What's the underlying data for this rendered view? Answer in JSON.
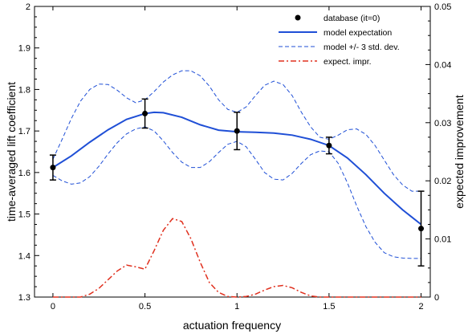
{
  "chart_data": {
    "type": "line",
    "xlabel": "actuation frequency",
    "ylabel": "time-averaged lift coefficient",
    "y2label": "expected improvement",
    "xlim": [
      -0.1,
      2.05
    ],
    "ylim": [
      1.3,
      2.0
    ],
    "y2lim": [
      0,
      0.05
    ],
    "xticks": [
      "0",
      "0.5",
      "1",
      "1.5",
      "2"
    ],
    "yticks": [
      "1.3",
      "1.4",
      "1.5",
      "1.6",
      "1.7",
      "1.8",
      "1.9",
      "2"
    ],
    "y2ticks": [
      "0",
      "0.01",
      "0.02",
      "0.03",
      "0.04",
      "0.05"
    ],
    "grid": false,
    "legend_position": "top-right",
    "series": [
      {
        "name": "database (it=0)",
        "kind": "scatter-errorbar",
        "color": "#000000",
        "x": [
          0,
          0.5,
          1.0,
          1.5,
          2.0
        ],
        "y": [
          1.612,
          1.742,
          1.7,
          1.665,
          1.465
        ],
        "yerr": [
          0.03,
          0.035,
          0.045,
          0.02,
          0.09
        ]
      },
      {
        "name": "model expectation",
        "kind": "line",
        "color": "#1f4fd6",
        "x": [
          0,
          0.1,
          0.2,
          0.3,
          0.4,
          0.5,
          0.55,
          0.6,
          0.7,
          0.8,
          0.9,
          1.0,
          1.1,
          1.2,
          1.3,
          1.4,
          1.5,
          1.6,
          1.7,
          1.8,
          1.9,
          2.0
        ],
        "y": [
          1.612,
          1.64,
          1.673,
          1.703,
          1.728,
          1.742,
          1.745,
          1.744,
          1.733,
          1.715,
          1.702,
          1.698,
          1.697,
          1.695,
          1.69,
          1.68,
          1.665,
          1.635,
          1.595,
          1.55,
          1.51,
          1.475
        ]
      },
      {
        "name": "model +/- 3 std. dev.",
        "kind": "dashed-band",
        "color": "#1f4fd6",
        "x": [
          0,
          0.05,
          0.1,
          0.15,
          0.2,
          0.25,
          0.3,
          0.35,
          0.4,
          0.45,
          0.5,
          0.55,
          0.6,
          0.65,
          0.7,
          0.75,
          0.8,
          0.85,
          0.9,
          0.95,
          1.0,
          1.05,
          1.1,
          1.15,
          1.2,
          1.25,
          1.3,
          1.35,
          1.4,
          1.45,
          1.5,
          1.55,
          1.6,
          1.65,
          1.7,
          1.75,
          1.8,
          1.85,
          1.9,
          1.95,
          2.0
        ],
        "upper": [
          1.632,
          1.68,
          1.73,
          1.772,
          1.8,
          1.813,
          1.812,
          1.798,
          1.78,
          1.768,
          1.775,
          1.795,
          1.818,
          1.835,
          1.845,
          1.845,
          1.833,
          1.808,
          1.775,
          1.752,
          1.745,
          1.758,
          1.785,
          1.81,
          1.82,
          1.812,
          1.785,
          1.745,
          1.71,
          1.685,
          1.68,
          1.69,
          1.703,
          1.705,
          1.692,
          1.665,
          1.63,
          1.595,
          1.57,
          1.555,
          1.555
        ],
        "lower": [
          1.593,
          1.58,
          1.572,
          1.575,
          1.59,
          1.615,
          1.645,
          1.672,
          1.693,
          1.705,
          1.71,
          1.7,
          1.676,
          1.648,
          1.625,
          1.612,
          1.612,
          1.626,
          1.648,
          1.668,
          1.675,
          1.662,
          1.632,
          1.6,
          1.584,
          1.582,
          1.598,
          1.622,
          1.643,
          1.652,
          1.65,
          1.622,
          1.575,
          1.52,
          1.47,
          1.432,
          1.407,
          1.397,
          1.394,
          1.393,
          1.393
        ]
      },
      {
        "name": "expect. impr.",
        "kind": "dashdot-line",
        "axis": "right",
        "color": "#e0301e",
        "x": [
          0,
          0.15,
          0.2,
          0.25,
          0.3,
          0.35,
          0.4,
          0.45,
          0.5,
          0.55,
          0.6,
          0.65,
          0.7,
          0.75,
          0.8,
          0.85,
          0.9,
          0.95,
          1.0,
          1.05,
          1.1,
          1.15,
          1.2,
          1.25,
          1.3,
          1.35,
          1.4,
          1.45,
          1.5,
          1.6,
          1.8,
          2.0
        ],
        "y": [
          0.0,
          0.0,
          0.0005,
          0.0015,
          0.003,
          0.0045,
          0.0055,
          0.0052,
          0.0048,
          0.008,
          0.0115,
          0.0135,
          0.013,
          0.01,
          0.006,
          0.0025,
          0.0008,
          0.0001,
          0.0,
          0.0001,
          0.0005,
          0.0012,
          0.0018,
          0.002,
          0.0016,
          0.0008,
          0.0002,
          0.0,
          0.0,
          0.0,
          0.0,
          0.0
        ]
      }
    ]
  }
}
